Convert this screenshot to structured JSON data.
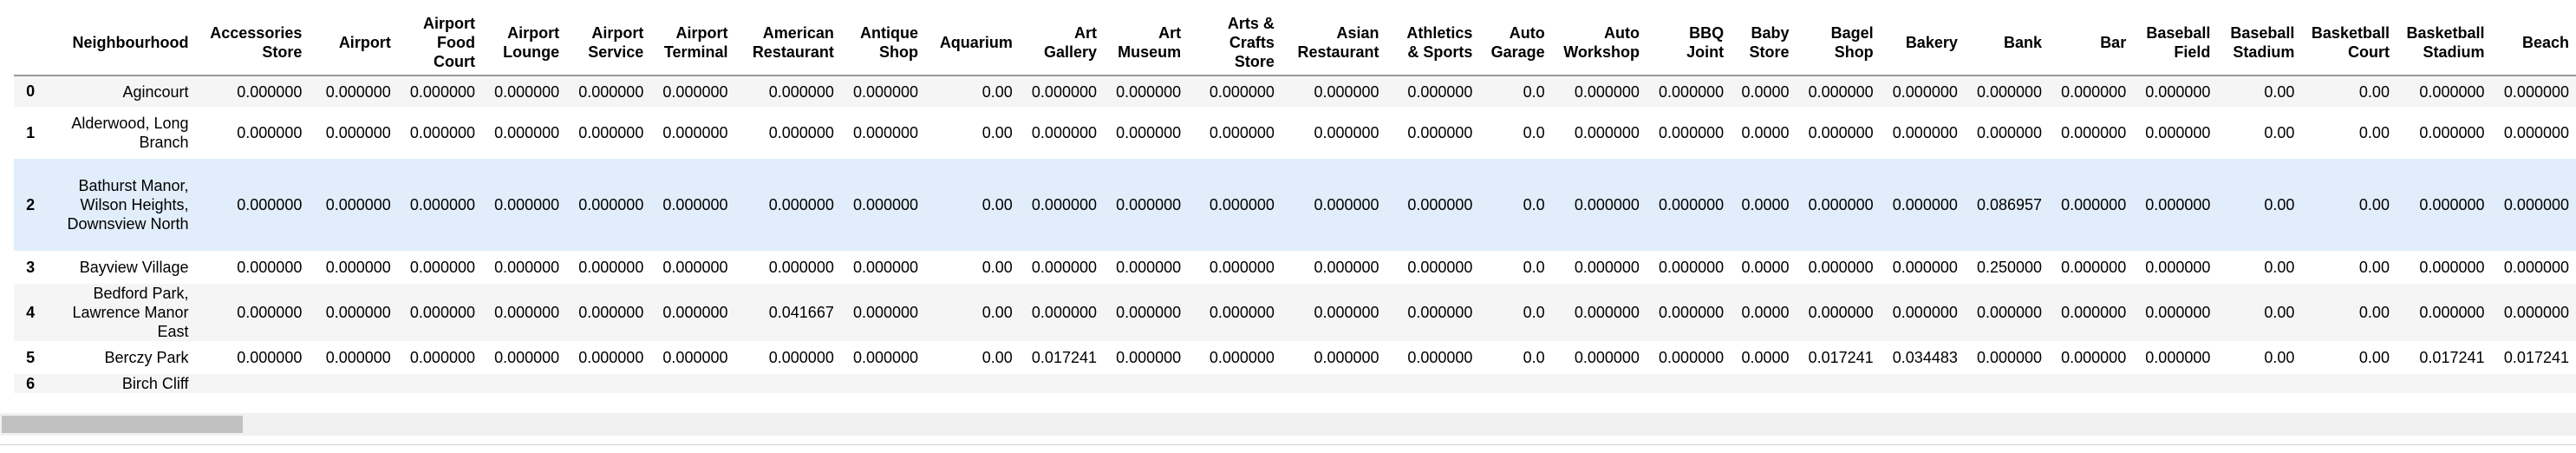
{
  "table": {
    "columns": [
      "Neighbourhood",
      "Accessories Store",
      "Airport",
      "Airport Food Court",
      "Airport Lounge",
      "Airport Service",
      "Airport Terminal",
      "American Restaurant",
      "Antique Shop",
      "Aquarium",
      "Art Gallery",
      "Art Museum",
      "Arts & Crafts Store",
      "Asian Restaurant",
      "Athletics & Sports",
      "Auto Garage",
      "Auto Workshop",
      "BBQ Joint",
      "Baby Store",
      "Bagel Shop",
      "Bakery",
      "Bank",
      "Bar",
      "Baseball Field",
      "Baseball Stadium",
      "Basketball Court",
      "Basketball Stadium",
      "Beach"
    ],
    "rows": [
      {
        "index": "0",
        "cells": [
          "Agincourt",
          "0.000000",
          "0.000000",
          "0.000000",
          "0.000000",
          "0.000000",
          "0.000000",
          "0.000000",
          "0.000000",
          "0.00",
          "0.000000",
          "0.000000",
          "0.000000",
          "0.000000",
          "0.000000",
          "0.0",
          "0.000000",
          "0.000000",
          "0.0000",
          "0.000000",
          "0.000000",
          "0.000000",
          "0.000000",
          "0.000000",
          "0.00",
          "0.00",
          "0.000000",
          "0.000000"
        ]
      },
      {
        "index": "1",
        "cells": [
          "Alderwood, Long Branch",
          "0.000000",
          "0.000000",
          "0.000000",
          "0.000000",
          "0.000000",
          "0.000000",
          "0.000000",
          "0.000000",
          "0.00",
          "0.000000",
          "0.000000",
          "0.000000",
          "0.000000",
          "0.000000",
          "0.0",
          "0.000000",
          "0.000000",
          "0.0000",
          "0.000000",
          "0.000000",
          "0.000000",
          "0.000000",
          "0.000000",
          "0.00",
          "0.00",
          "0.000000",
          "0.000000"
        ]
      },
      {
        "index": "2",
        "cells": [
          "Bathurst Manor, Wilson Heights, Downsview North",
          "0.000000",
          "0.000000",
          "0.000000",
          "0.000000",
          "0.000000",
          "0.000000",
          "0.000000",
          "0.000000",
          "0.00",
          "0.000000",
          "0.000000",
          "0.000000",
          "0.000000",
          "0.000000",
          "0.0",
          "0.000000",
          "0.000000",
          "0.0000",
          "0.000000",
          "0.000000",
          "0.086957",
          "0.000000",
          "0.000000",
          "0.00",
          "0.00",
          "0.000000",
          "0.000000"
        ]
      },
      {
        "index": "3",
        "cells": [
          "Bayview Village",
          "0.000000",
          "0.000000",
          "0.000000",
          "0.000000",
          "0.000000",
          "0.000000",
          "0.000000",
          "0.000000",
          "0.00",
          "0.000000",
          "0.000000",
          "0.000000",
          "0.000000",
          "0.000000",
          "0.0",
          "0.000000",
          "0.000000",
          "0.0000",
          "0.000000",
          "0.000000",
          "0.250000",
          "0.000000",
          "0.000000",
          "0.00",
          "0.00",
          "0.000000",
          "0.000000"
        ]
      },
      {
        "index": "4",
        "cells": [
          "Bedford Park, Lawrence Manor East",
          "0.000000",
          "0.000000",
          "0.000000",
          "0.000000",
          "0.000000",
          "0.000000",
          "0.041667",
          "0.000000",
          "0.00",
          "0.000000",
          "0.000000",
          "0.000000",
          "0.000000",
          "0.000000",
          "0.0",
          "0.000000",
          "0.000000",
          "0.0000",
          "0.000000",
          "0.000000",
          "0.000000",
          "0.000000",
          "0.000000",
          "0.00",
          "0.00",
          "0.000000",
          "0.000000"
        ]
      },
      {
        "index": "5",
        "cells": [
          "Berczy Park",
          "0.000000",
          "0.000000",
          "0.000000",
          "0.000000",
          "0.000000",
          "0.000000",
          "0.000000",
          "0.000000",
          "0.00",
          "0.017241",
          "0.000000",
          "0.000000",
          "0.000000",
          "0.000000",
          "0.0",
          "0.000000",
          "0.000000",
          "0.0000",
          "0.017241",
          "0.034483",
          "0.000000",
          "0.000000",
          "0.000000",
          "0.00",
          "0.00",
          "0.017241",
          "0.017241"
        ]
      },
      {
        "index": "6",
        "cells": [
          "Birch Cliff",
          "",
          "",
          "",
          "",
          "",
          "",
          "",
          "",
          "",
          "",
          "",
          "",
          "",
          "",
          "",
          "",
          "",
          "",
          "",
          "",
          "",
          "",
          "",
          "",
          "",
          "",
          ""
        ]
      }
    ],
    "hovered_row": "2"
  },
  "colors": {
    "odd_row": "#f5f5f5",
    "even_row": "#ffffff",
    "hover_row": "#e1edfa",
    "scrollbar_track": "#f1f1f1",
    "scrollbar_thumb": "#c1c1c1"
  }
}
